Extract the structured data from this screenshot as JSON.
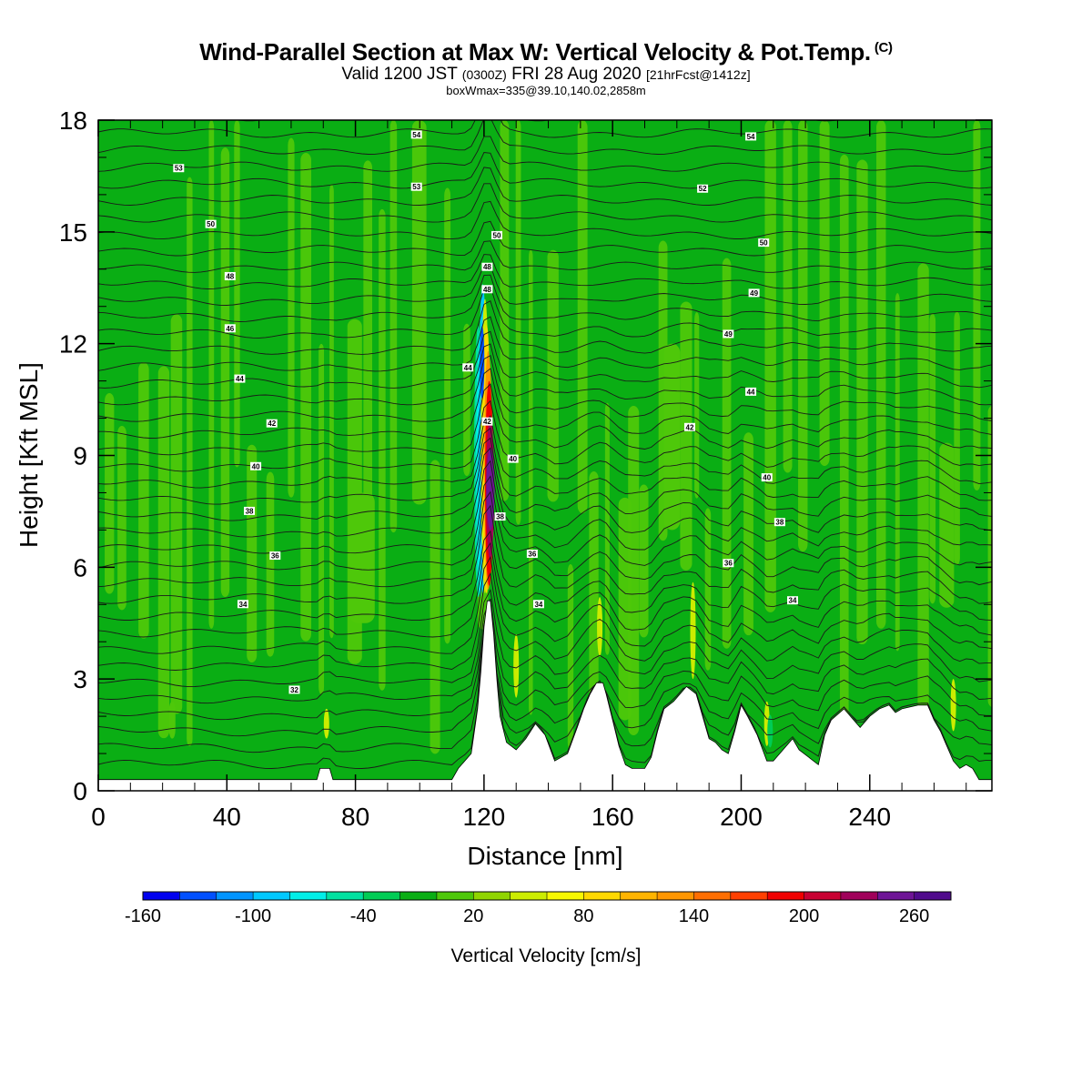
{
  "titles": {
    "main": "Wind-Parallel Section at Max W: Vertical Velocity & Pot.Temp.",
    "main_mark": "(C)",
    "valid_a": "Valid 1200 JST",
    "valid_b": "(0300Z)",
    "valid_c": "FRI 28 Aug 2020",
    "valid_d": "[21hrFcst@1412z]",
    "box": "boxWmax=335@39.10,140.02,2858m"
  },
  "chart_data": {
    "type": "heatmap",
    "xlabel": "Distance [nm]",
    "ylabel": "Height [Kft MSL]",
    "xlim": [
      0,
      278
    ],
    "ylim": [
      0,
      18
    ],
    "x_ticks": [
      0,
      40,
      80,
      120,
      160,
      200,
      240
    ],
    "y_ticks": [
      0,
      3,
      6,
      9,
      12,
      15,
      18
    ],
    "grid": false,
    "legend": "bottom",
    "colorbar": {
      "title": "Vertical Velocity [cm/s]",
      "tick_labels": [
        "-160",
        "-100",
        "-40",
        "20",
        "80",
        "140",
        "200",
        "260"
      ],
      "tick_values": [
        -160,
        -100,
        -40,
        20,
        80,
        140,
        200,
        260
      ],
      "range": [
        -160,
        280
      ],
      "step": 20,
      "colors": [
        "#0000ee",
        "#0050ff",
        "#0094ff",
        "#00c8ff",
        "#00eee8",
        "#00e0a0",
        "#00cc55",
        "#0aae14",
        "#4ec80a",
        "#90d400",
        "#ccec00",
        "#f8f800",
        "#ffd800",
        "#ffb400",
        "#ff9600",
        "#ff6e00",
        "#ff4000",
        "#f00000",
        "#c80032",
        "#a0005a",
        "#6e1496",
        "#500a8c"
      ]
    },
    "terrain": [
      [
        0,
        0.3
      ],
      [
        68,
        0.3
      ],
      [
        69,
        0.6
      ],
      [
        72,
        0.6
      ],
      [
        73,
        0.3
      ],
      [
        110,
        0.3
      ],
      [
        112,
        0.6
      ],
      [
        116,
        1.0
      ],
      [
        118,
        2.2
      ],
      [
        119,
        3.2
      ],
      [
        120,
        4.4
      ],
      [
        121,
        5.1
      ],
      [
        122,
        5.1
      ],
      [
        123,
        4.2
      ],
      [
        124,
        3.0
      ],
      [
        125,
        2.0
      ],
      [
        127,
        1.3
      ],
      [
        130,
        1.1
      ],
      [
        133,
        1.4
      ],
      [
        136,
        1.8
      ],
      [
        139,
        1.5
      ],
      [
        142,
        0.8
      ],
      [
        146,
        1.0
      ],
      [
        149,
        1.7
      ],
      [
        151,
        2.2
      ],
      [
        153,
        2.6
      ],
      [
        155,
        2.9
      ],
      [
        157,
        2.9
      ],
      [
        158,
        2.6
      ],
      [
        160,
        1.9
      ],
      [
        162,
        1.2
      ],
      [
        164,
        0.7
      ],
      [
        166,
        0.6
      ],
      [
        170,
        0.6
      ],
      [
        172,
        0.9
      ],
      [
        174,
        1.6
      ],
      [
        176,
        2.2
      ],
      [
        179,
        2.4
      ],
      [
        181,
        2.6
      ],
      [
        183,
        2.8
      ],
      [
        186,
        2.6
      ],
      [
        188,
        2.0
      ],
      [
        190,
        1.4
      ],
      [
        192,
        1.3
      ],
      [
        194,
        1.1
      ],
      [
        196,
        1.0
      ],
      [
        198,
        1.6
      ],
      [
        200,
        2.3
      ],
      [
        202,
        2.0
      ],
      [
        205,
        1.5
      ],
      [
        208,
        0.8
      ],
      [
        210,
        0.8
      ],
      [
        213,
        1.1
      ],
      [
        216,
        1.4
      ],
      [
        218,
        1.1
      ],
      [
        221,
        0.9
      ],
      [
        224,
        0.7
      ],
      [
        226,
        1.5
      ],
      [
        228,
        1.9
      ],
      [
        232,
        2.2
      ],
      [
        235,
        1.9
      ],
      [
        237,
        1.7
      ],
      [
        240,
        2.0
      ],
      [
        243,
        2.2
      ],
      [
        246,
        2.3
      ],
      [
        248,
        2.1
      ],
      [
        250,
        2.2
      ],
      [
        255,
        2.3
      ],
      [
        258,
        2.3
      ],
      [
        260,
        1.9
      ],
      [
        262,
        1.6
      ],
      [
        264,
        1.2
      ],
      [
        266,
        0.8
      ],
      [
        268,
        0.6
      ],
      [
        270,
        0.7
      ],
      [
        272,
        0.6
      ],
      [
        274,
        0.3
      ],
      [
        278,
        0.3
      ]
    ],
    "contour_labels": [
      {
        "text": "54",
        "x": 99,
        "y": 17.6
      },
      {
        "text": "54",
        "x": 203,
        "y": 17.55
      },
      {
        "text": "53",
        "x": 25,
        "y": 16.7
      },
      {
        "text": "53",
        "x": 99,
        "y": 16.2
      },
      {
        "text": "52",
        "x": 188,
        "y": 16.15
      },
      {
        "text": "50",
        "x": 35,
        "y": 15.2
      },
      {
        "text": "50",
        "x": 124,
        "y": 14.9
      },
      {
        "text": "50",
        "x": 207,
        "y": 14.7
      },
      {
        "text": "48",
        "x": 41,
        "y": 13.8
      },
      {
        "text": "48",
        "x": 121,
        "y": 14.05
      },
      {
        "text": "48",
        "x": 121,
        "y": 13.45
      },
      {
        "text": "49",
        "x": 204,
        "y": 13.35
      },
      {
        "text": "46",
        "x": 41,
        "y": 12.4
      },
      {
        "text": "49",
        "x": 196,
        "y": 12.25
      },
      {
        "text": "44",
        "x": 44,
        "y": 11.05
      },
      {
        "text": "44",
        "x": 115,
        "y": 11.35
      },
      {
        "text": "44",
        "x": 203,
        "y": 10.7
      },
      {
        "text": "42",
        "x": 54,
        "y": 9.85
      },
      {
        "text": "42",
        "x": 121,
        "y": 9.9
      },
      {
        "text": "42",
        "x": 184,
        "y": 9.75
      },
      {
        "text": "40",
        "x": 49,
        "y": 8.7
      },
      {
        "text": "40",
        "x": 129,
        "y": 8.9
      },
      {
        "text": "40",
        "x": 208,
        "y": 8.4
      },
      {
        "text": "38",
        "x": 47,
        "y": 7.5
      },
      {
        "text": "38",
        "x": 125,
        "y": 7.35
      },
      {
        "text": "38",
        "x": 212,
        "y": 7.2
      },
      {
        "text": "36",
        "x": 55,
        "y": 6.3
      },
      {
        "text": "36",
        "x": 135,
        "y": 6.35
      },
      {
        "text": "36",
        "x": 196,
        "y": 6.1
      },
      {
        "text": "34",
        "x": 45,
        "y": 5.0
      },
      {
        "text": "34",
        "x": 137,
        "y": 5.0
      },
      {
        "text": "34",
        "x": 216,
        "y": 5.1
      },
      {
        "text": "32",
        "x": 61,
        "y": 2.7
      }
    ]
  },
  "icons": {
    "colorbar": "color-scale-bar"
  }
}
